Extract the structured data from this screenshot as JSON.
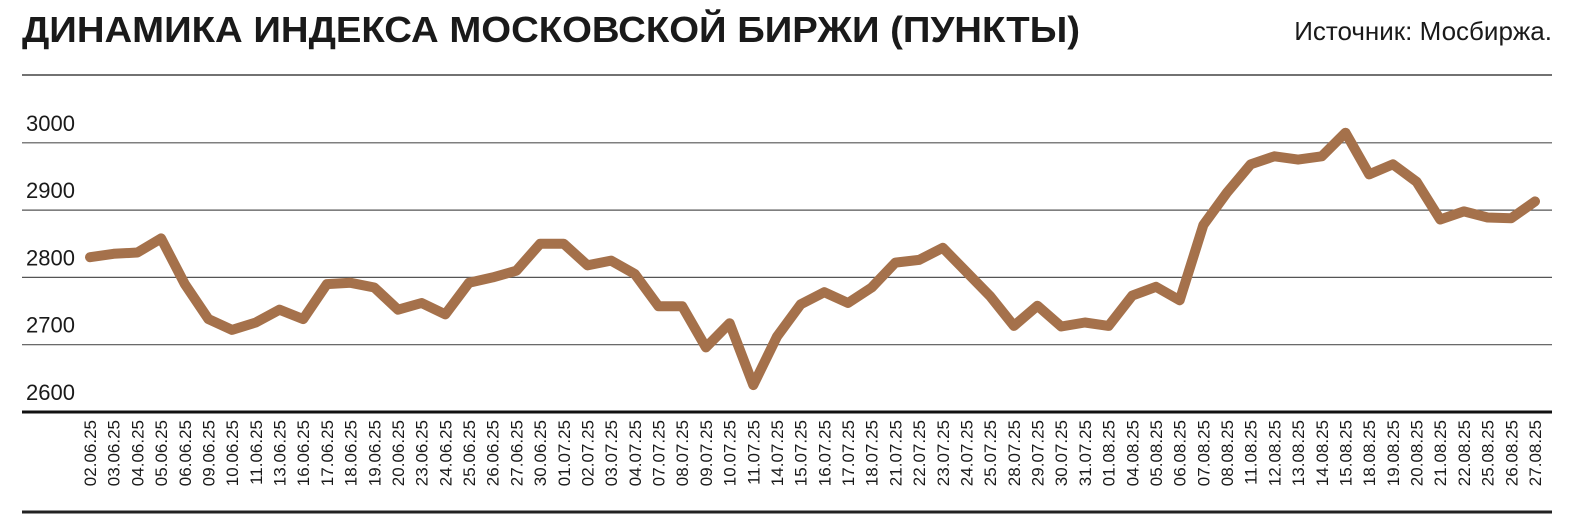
{
  "chart_data": {
    "type": "line",
    "title": "ДИНАМИКА ИНДЕКСА МОСКОВСКОЙ БИРЖИ (ПУНКТЫ)",
    "source": "Источник: Мосбиржа.",
    "categories": [
      "02.06.25",
      "03.06.25",
      "04.06.25",
      "05.06.25",
      "06.06.25",
      "09.06.25",
      "10.06.25",
      "11.06.25",
      "13.06.25",
      "16.06.25",
      "17.06.25",
      "18.06.25",
      "19.06.25",
      "20.06.25",
      "23.06.25",
      "24.06.25",
      "25.06.25",
      "26.06.25",
      "27.06.25",
      "30.06.25",
      "01.07.25",
      "02.07.25",
      "03.07.25",
      "04.07.25",
      "07.07.25",
      "08.07.25",
      "09.07.25",
      "10.07.25",
      "11.07.25",
      "14.07.25",
      "15.07.25",
      "16.07.25",
      "17.07.25",
      "18.07.25",
      "21.07.25",
      "22.07.25",
      "23.07.25",
      "24.07.25",
      "25.07.25",
      "28.07.25",
      "29.07.25",
      "30.07.25",
      "31.07.25",
      "01.08.25",
      "04.08.25",
      "05.08.25",
      "06.08.25",
      "07.08.25",
      "08.08.25",
      "11.08.25",
      "12.08.25",
      "13.08.25",
      "14.08.25",
      "15.08.25",
      "18.08.25",
      "19.08.25",
      "20.08.25",
      "21.08.25",
      "22.08.25",
      "25.08.25",
      "26.08.25",
      "27.08.25"
    ],
    "values": [
      2830,
      2835,
      2837,
      2858,
      2790,
      2738,
      2722,
      2733,
      2752,
      2738,
      2790,
      2792,
      2785,
      2752,
      2762,
      2745,
      2792,
      2800,
      2810,
      2850,
      2850,
      2818,
      2825,
      2805,
      2757,
      2757,
      2696,
      2732,
      2640,
      2712,
      2760,
      2778,
      2762,
      2785,
      2822,
      2826,
      2844,
      2808,
      2772,
      2728,
      2758,
      2727,
      2733,
      2728,
      2773,
      2786,
      2766,
      2878,
      2926,
      2968,
      2980,
      2975,
      2980,
      3015,
      2953,
      2968,
      2942,
      2886,
      2898,
      2889,
      2888,
      2913
    ],
    "color": "#a5714b",
    "ylim": [
      2600,
      3100
    ],
    "yticks": [
      2600,
      2700,
      2800,
      2900,
      3000
    ],
    "grid": true
  }
}
